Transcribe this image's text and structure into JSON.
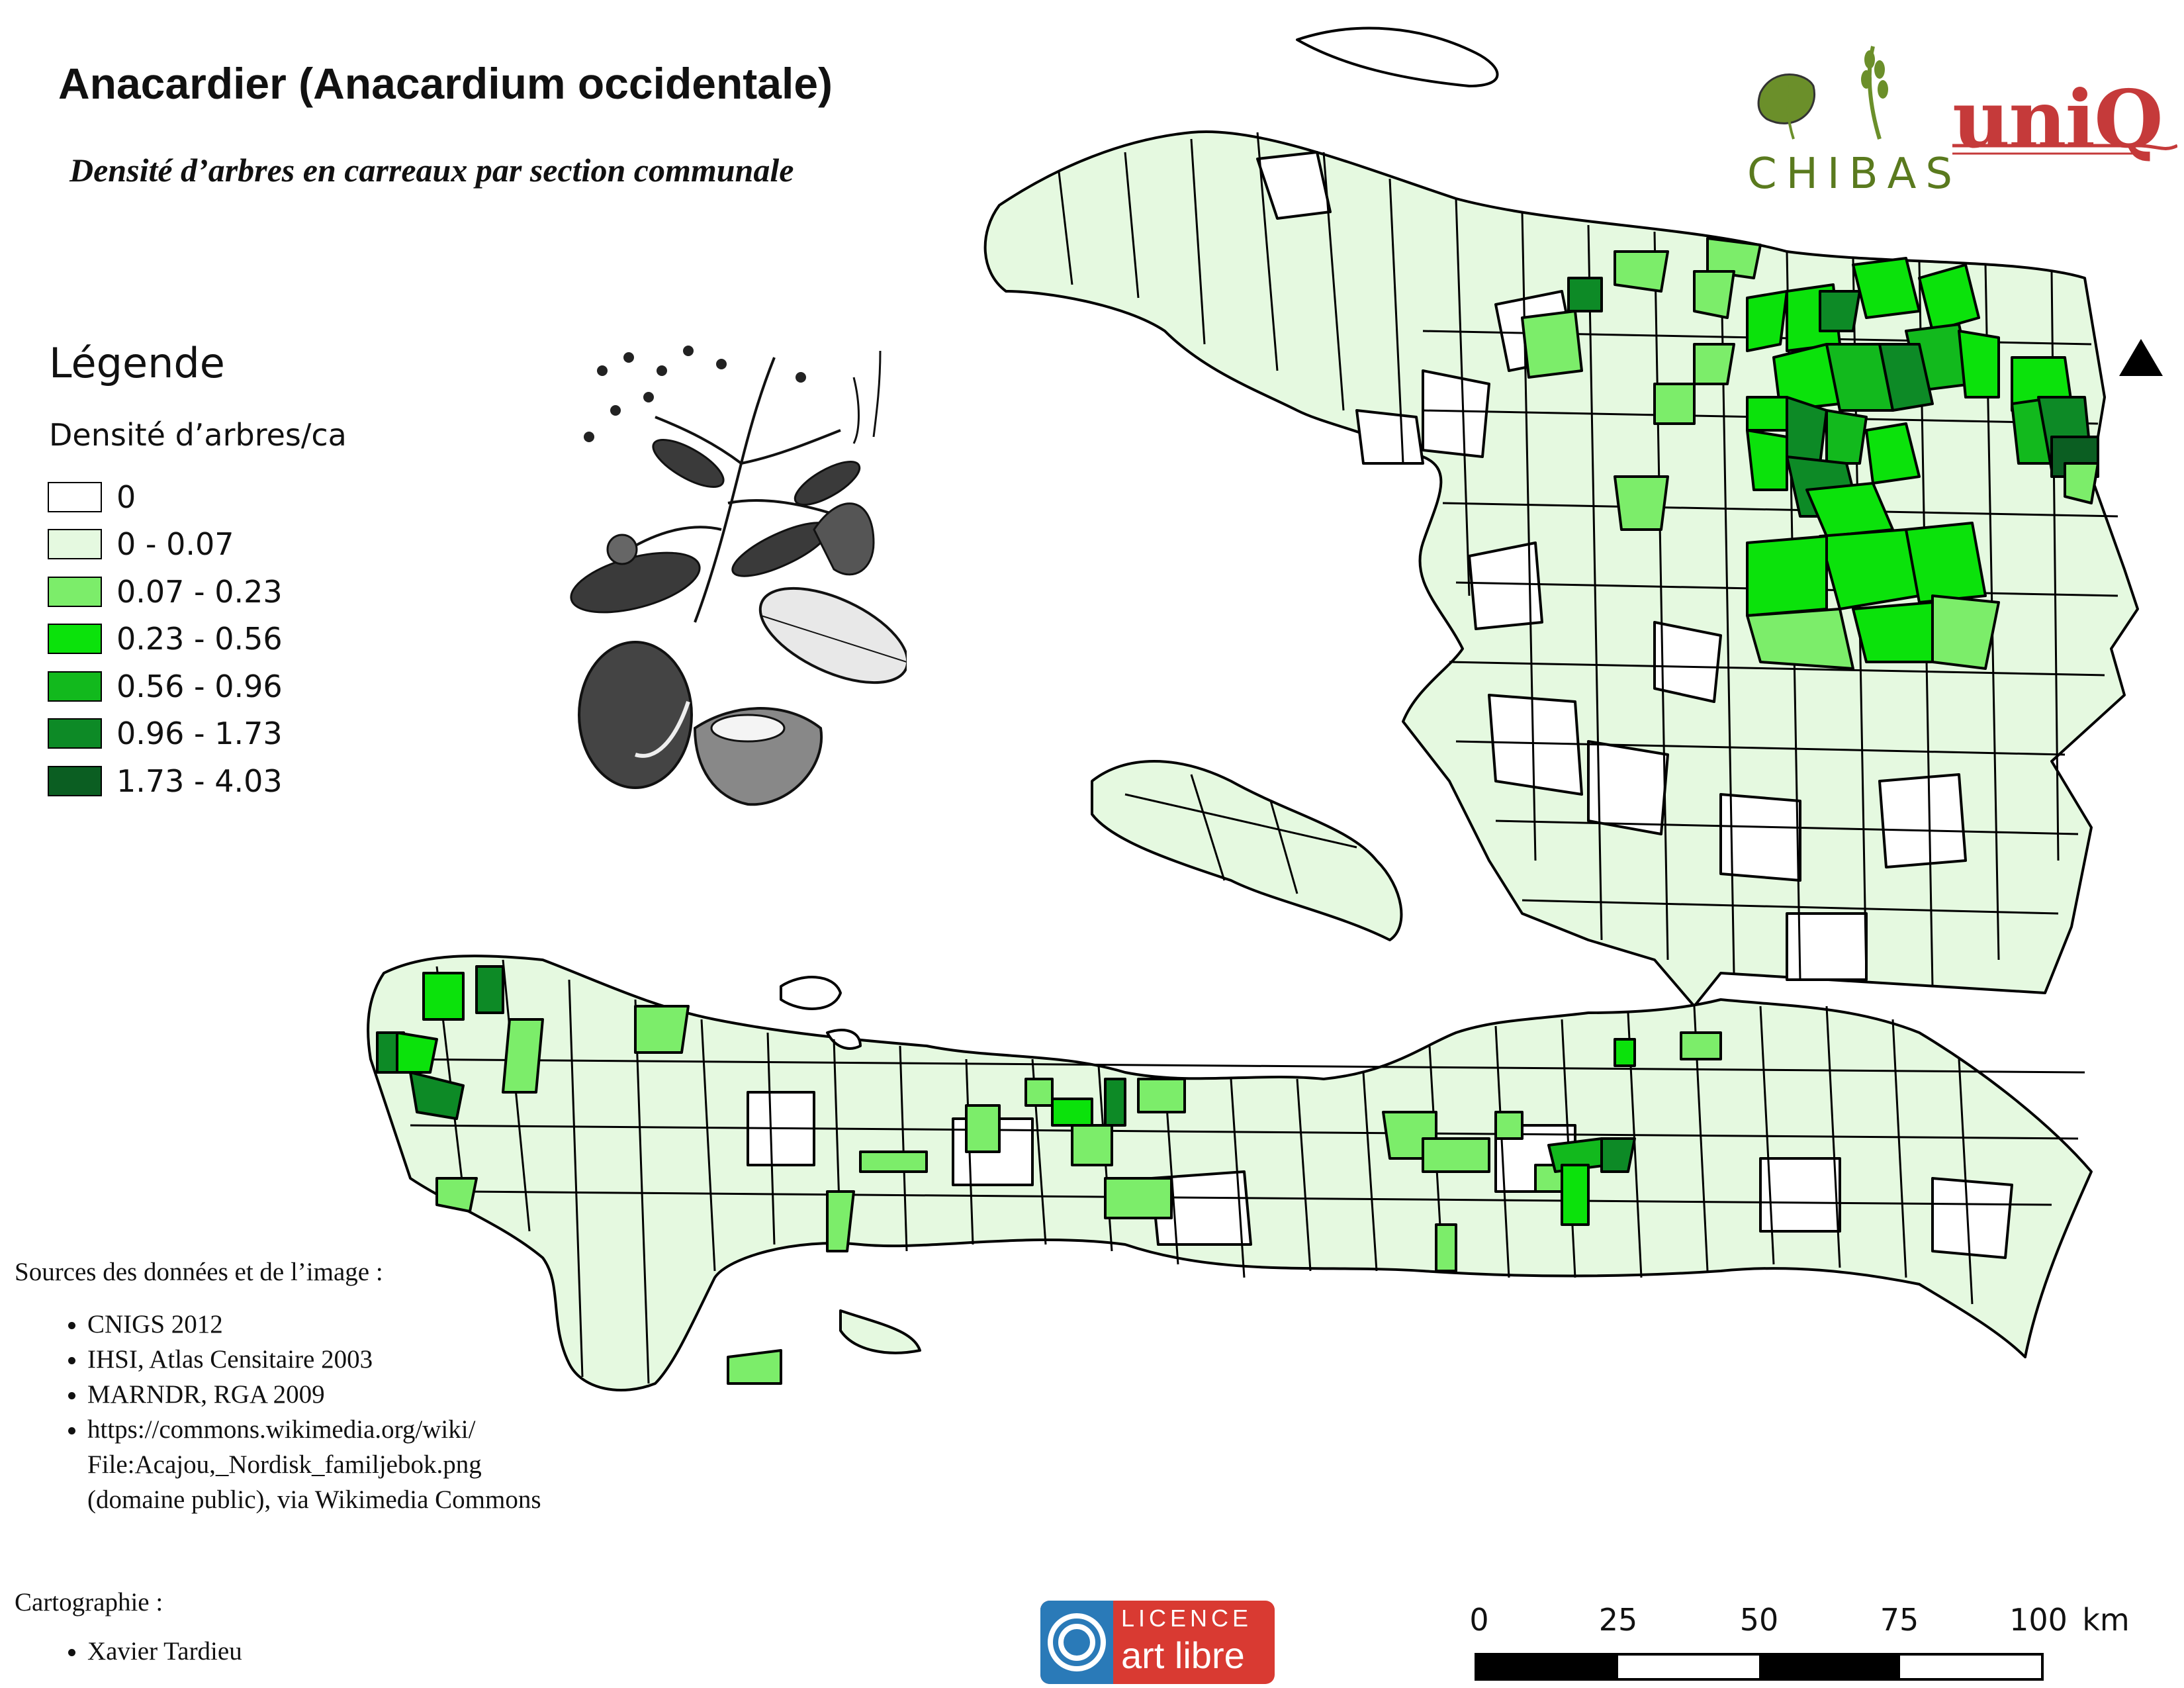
{
  "title": "Anacardier (Anacardium occidentale)",
  "subtitle": "Densité d’arbres en carreaux par section communale",
  "legend": {
    "title": "Légende",
    "subtitle": "Densité d’arbres/ca",
    "classes": [
      {
        "label": "0",
        "color": "#ffffff"
      },
      {
        "label": "0 - 0.07",
        "color": "#e5f9e0"
      },
      {
        "label": "0.07 - 0.23",
        "color": "#7ced6a"
      },
      {
        "label": "0.23 - 0.56",
        "color": "#0be20b"
      },
      {
        "label": "0.56 - 0.96",
        "color": "#12b91d"
      },
      {
        "label": "0.96 - 1.73",
        "color": "#0d8a26"
      },
      {
        "label": "1.73 - 4.03",
        "color": "#0b5e22"
      }
    ]
  },
  "sources": {
    "heading": "Sources des données et de l’image :",
    "items": [
      "CNIGS 2012",
      "IHSI, Atlas Censitaire 2003",
      "MARNDR, RGA 2009",
      "https://commons.wikimedia.org/wiki/ File:Acajou,_Nordisk_familjebok.png (domaine public), via Wikimedia Commons"
    ]
  },
  "cartography": {
    "heading": "Cartographie :",
    "items": [
      "Xavier Tardieu"
    ]
  },
  "logos": {
    "chibas": "CHIBAS",
    "uniq": "uniQ",
    "licence_line1": "LICENCE",
    "licence_line2": "art libre"
  },
  "scale": {
    "ticks": [
      "0",
      "25",
      "50",
      "75",
      "100"
    ],
    "unit": "km"
  },
  "icons": {
    "north": "north-arrow-icon",
    "plant": "cashew-plant-illustration"
  }
}
